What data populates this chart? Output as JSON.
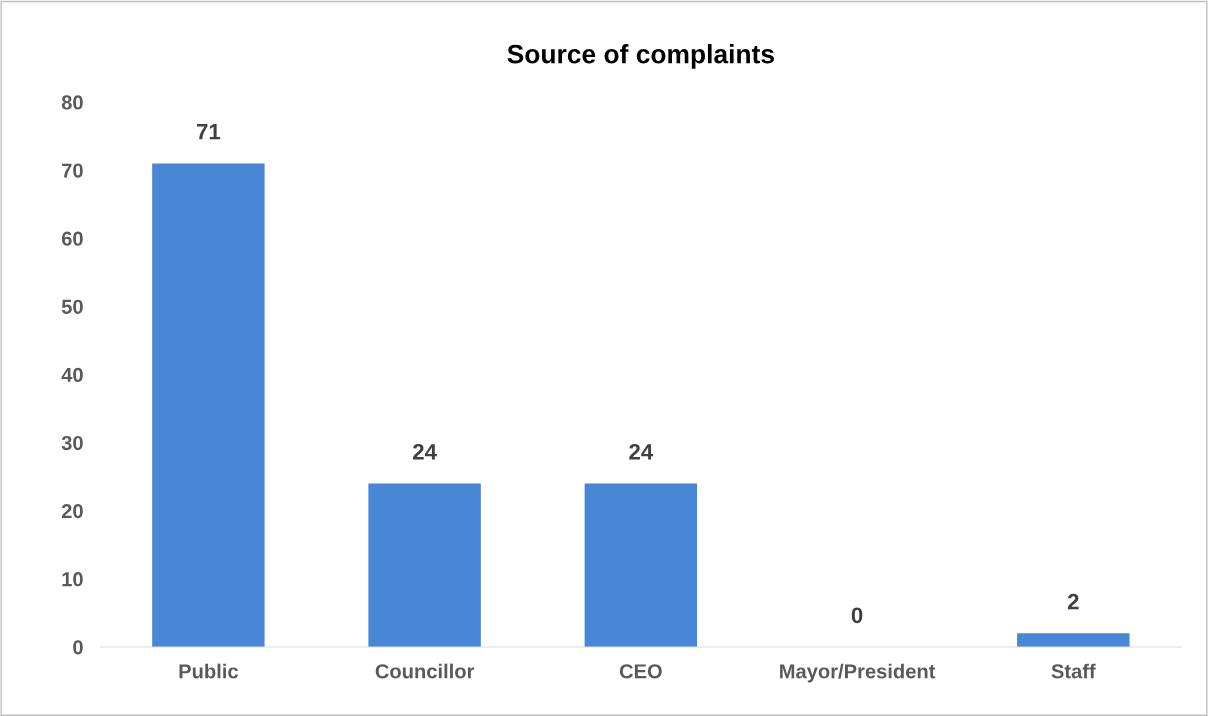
{
  "chart_data": {
    "type": "bar",
    "title": "Source of complaints",
    "categories": [
      "Public",
      "Councillor",
      "CEO",
      "Mayor/President",
      "Staff"
    ],
    "values": [
      71,
      24,
      24,
      0,
      2
    ],
    "color": "#4a86d6",
    "ylim": [
      0,
      80
    ],
    "yticks": [
      0,
      10,
      20,
      30,
      40,
      50,
      60,
      70,
      80
    ],
    "grid": false,
    "data_labels": true
  }
}
